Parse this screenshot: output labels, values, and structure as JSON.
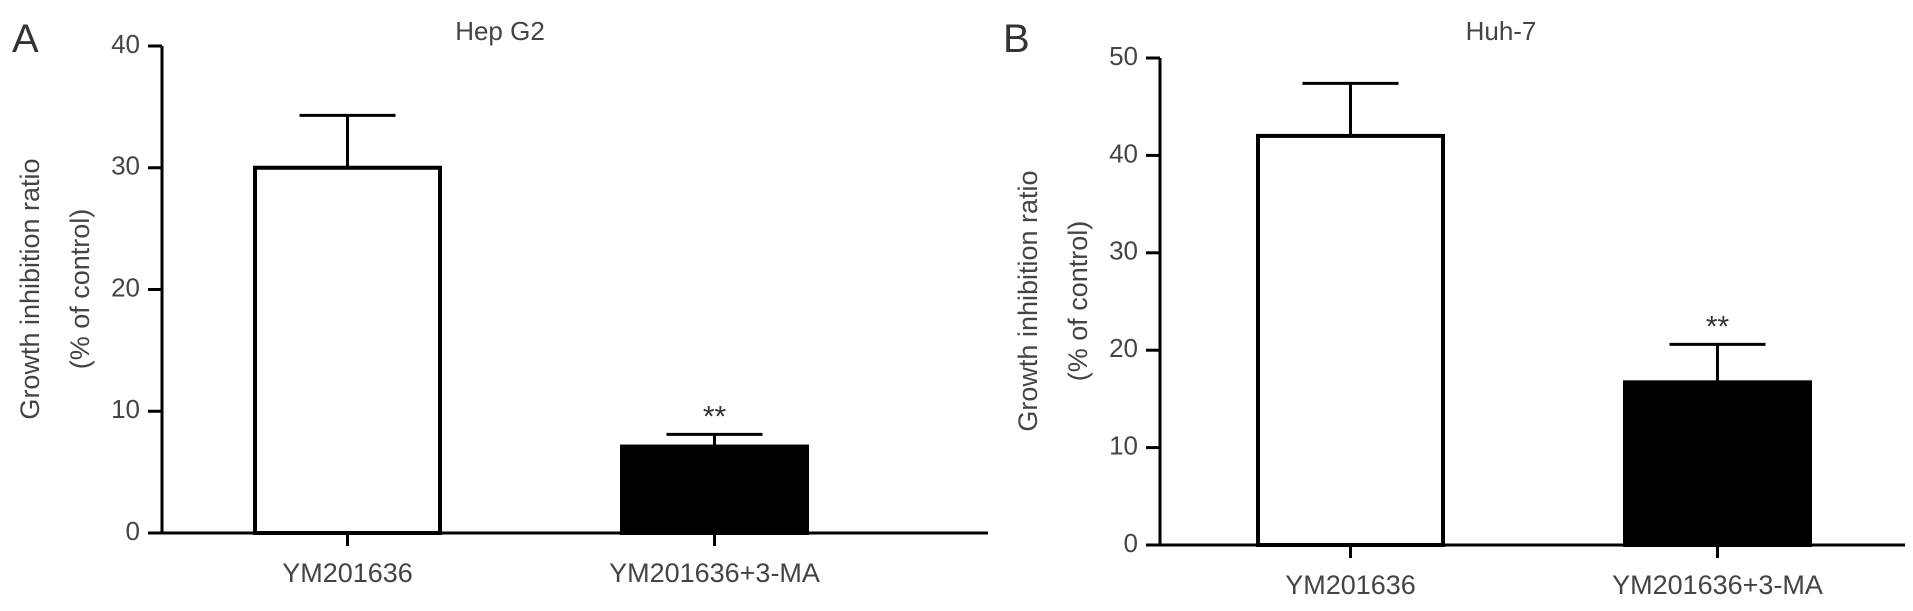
{
  "chart_data": [
    {
      "panel_label": "A",
      "type": "bar",
      "title": "Hep G2",
      "ylabel": "Growth inhibition ratio",
      "ylabel_sub": "(% of control)",
      "categories": [
        "YM201636",
        "YM201636+3-MA"
      ],
      "values": [
        30.0,
        7.1
      ],
      "errors": [
        4.3,
        1.0
      ],
      "fills": [
        "#ffffff",
        "#000000"
      ],
      "annotations": [
        "",
        "**"
      ],
      "ylim": [
        0,
        40
      ],
      "yticks": [
        0,
        10,
        20,
        30,
        40
      ],
      "grid": false
    },
    {
      "panel_label": "B",
      "type": "bar",
      "title": "Huh-7",
      "ylabel": "Growth inhibition ratio",
      "ylabel_sub": "(% of control)",
      "categories": [
        "YM201636",
        "YM201636+3-MA"
      ],
      "values": [
        42.0,
        16.7
      ],
      "errors": [
        5.4,
        3.9
      ],
      "fills": [
        "#ffffff",
        "#000000"
      ],
      "annotations": [
        "",
        "**"
      ],
      "ylim": [
        0,
        50
      ],
      "yticks": [
        0,
        10,
        20,
        30,
        40,
        50
      ],
      "grid": false
    }
  ]
}
